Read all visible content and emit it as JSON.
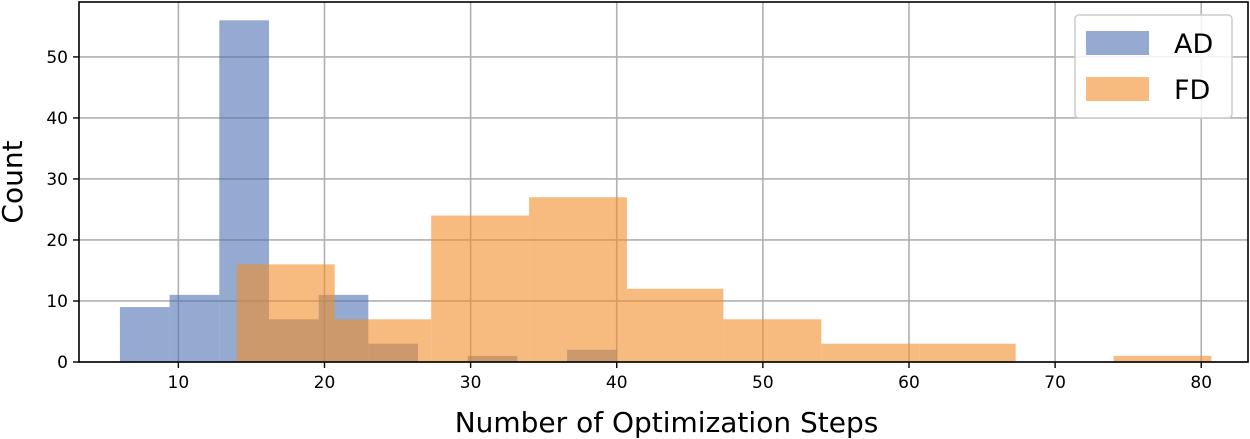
{
  "chart_data": {
    "type": "histogram",
    "title": "",
    "xlabel": "Number of Optimization Steps",
    "ylabel": "Count",
    "xlim": [
      3.2,
      83.2
    ],
    "ylim": [
      0,
      59
    ],
    "xticks": [
      10,
      20,
      30,
      40,
      50,
      60,
      70,
      80
    ],
    "yticks": [
      0,
      10,
      20,
      30,
      40,
      50
    ],
    "grid": true,
    "legend": {
      "position": "top-right"
    },
    "series": [
      {
        "name": "AD",
        "color": "#4c72b0",
        "opacity": 0.6,
        "bins": [
          {
            "x0": 6.0,
            "x1": 9.4,
            "count": 9
          },
          {
            "x0": 9.4,
            "x1": 12.8,
            "count": 11
          },
          {
            "x0": 12.8,
            "x1": 16.2,
            "count": 56
          },
          {
            "x0": 16.2,
            "x1": 19.6,
            "count": 7
          },
          {
            "x0": 19.6,
            "x1": 23.0,
            "count": 11
          },
          {
            "x0": 23.0,
            "x1": 26.4,
            "count": 3
          },
          {
            "x0": 26.4,
            "x1": 29.8,
            "count": 0
          },
          {
            "x0": 29.8,
            "x1": 33.2,
            "count": 1
          },
          {
            "x0": 33.2,
            "x1": 36.6,
            "count": 0
          },
          {
            "x0": 36.6,
            "x1": 40.0,
            "count": 2
          }
        ]
      },
      {
        "name": "FD",
        "color": "#f28e2b",
        "opacity": 0.6,
        "bins": [
          {
            "x0": 14.0,
            "x1": 20.7,
            "count": 16
          },
          {
            "x0": 20.7,
            "x1": 27.3,
            "count": 7
          },
          {
            "x0": 27.3,
            "x1": 34.0,
            "count": 24
          },
          {
            "x0": 34.0,
            "x1": 40.7,
            "count": 27
          },
          {
            "x0": 40.7,
            "x1": 47.3,
            "count": 12
          },
          {
            "x0": 47.3,
            "x1": 54.0,
            "count": 7
          },
          {
            "x0": 54.0,
            "x1": 60.7,
            "count": 3
          },
          {
            "x0": 60.7,
            "x1": 67.3,
            "count": 3
          },
          {
            "x0": 67.3,
            "x1": 74.0,
            "count": 0
          },
          {
            "x0": 74.0,
            "x1": 80.7,
            "count": 1
          }
        ]
      }
    ]
  }
}
